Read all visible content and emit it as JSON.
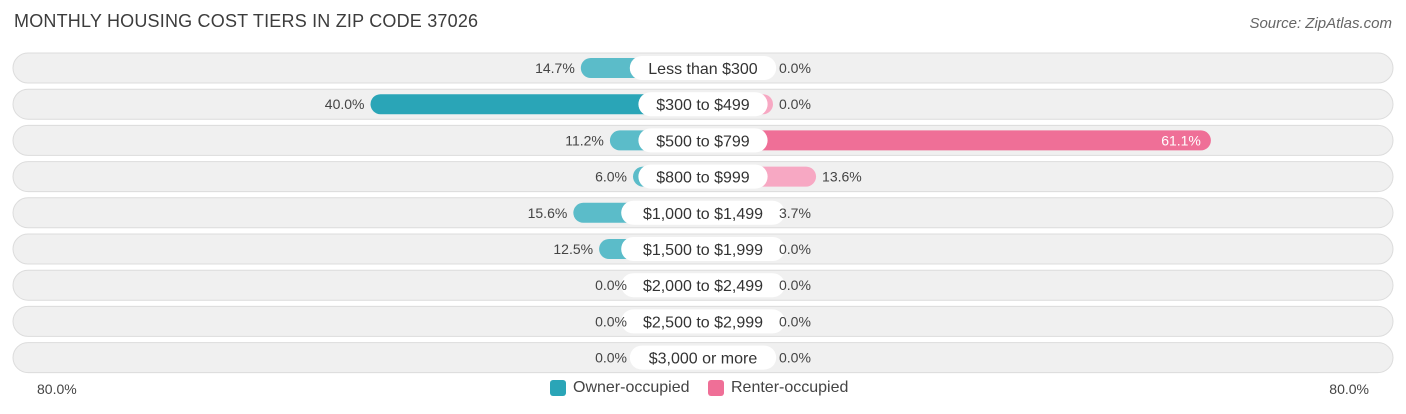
{
  "header": {
    "title": "MONTHLY HOUSING COST TIERS IN ZIP CODE 37026",
    "source": "Source: ZipAtlas.com"
  },
  "colors": {
    "owner": "#5bbcc9",
    "owner_strong": "#2aa5b7",
    "renter": "#f7a8c3",
    "renter_strong": "#ef6f97",
    "row_bg": "#f0f0f0",
    "row_border": "#dcdcdc"
  },
  "legend": {
    "owner_label": "Owner-occupied",
    "renter_label": "Renter-occupied"
  },
  "axis": {
    "left_label": "80.0%",
    "right_label": "80.0%"
  },
  "chart_data": {
    "type": "bar",
    "orientation": "horizontal-diverging",
    "xlim": [
      -80,
      80
    ],
    "categories": [
      "Less than $300",
      "$300 to $499",
      "$500 to $799",
      "$800 to $999",
      "$1,000 to $1,499",
      "$1,500 to $1,999",
      "$2,000 to $2,499",
      "$2,500 to $2,999",
      "$3,000 or more"
    ],
    "series": [
      {
        "name": "Owner-occupied",
        "values": [
          14.7,
          40.0,
          11.2,
          6.0,
          15.6,
          12.5,
          0.0,
          0.0,
          0.0
        ],
        "labels": [
          "14.7%",
          "40.0%",
          "11.2%",
          "6.0%",
          "15.6%",
          "12.5%",
          "0.0%",
          "0.0%",
          "0.0%"
        ]
      },
      {
        "name": "Renter-occupied",
        "values": [
          0.0,
          0.0,
          61.1,
          13.6,
          3.7,
          0.0,
          0.0,
          0.0,
          0.0
        ],
        "labels": [
          "0.0%",
          "0.0%",
          "61.1%",
          "13.6%",
          "3.7%",
          "0.0%",
          "0.0%",
          "0.0%",
          "0.0%"
        ]
      }
    ]
  }
}
